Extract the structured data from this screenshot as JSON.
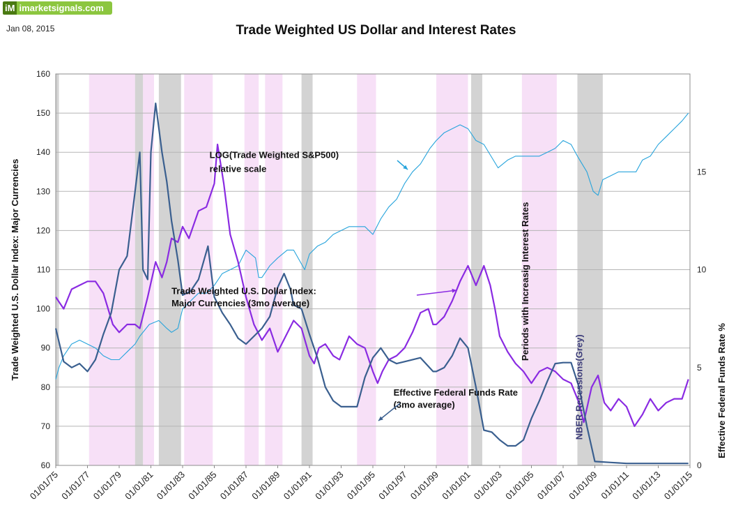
{
  "brand": {
    "logo": "iM",
    "name": "imarketsignals.com",
    "color": "#8cc63f"
  },
  "date": "Jan 08, 2015",
  "chart_data": {
    "type": "line",
    "title": "Trade Weighted US Dollar  and Interest Rates",
    "ylabel": "Trade Weighted U.S. Dollar Index:  Major Currencies",
    "ylabel_right": "Effective Federal Funds Rate %",
    "ylim": [
      60,
      160
    ],
    "ylim_right": [
      0,
      20
    ],
    "yticks": [
      60,
      70,
      80,
      90,
      100,
      110,
      120,
      130,
      140,
      150,
      160
    ],
    "yticks_right": [
      0,
      5,
      10,
      15
    ],
    "xlim": [
      1975.0,
      2015.0
    ],
    "xticks": [
      "01/01/75",
      "01/01/77",
      "01/01/79",
      "01/01/81",
      "01/01/83",
      "01/01/85",
      "01/01/87",
      "01/01/89",
      "01/01/91",
      "01/01/93",
      "01/01/95",
      "01/01/97",
      "01/01/99",
      "01/01/01",
      "01/01/03",
      "01/01/05",
      "01/01/07",
      "01/01/09",
      "01/01/11",
      "01/01/13",
      "01/01/15"
    ],
    "grid": true,
    "recession_color": "#d3d3d3",
    "rising_rate_color": "#f7e0f7",
    "recession_periods": [
      [
        1975.0,
        1975.2
      ],
      [
        1980.0,
        1980.5
      ],
      [
        1981.5,
        1982.9
      ],
      [
        1990.5,
        1991.2
      ],
      [
        2001.2,
        2001.9
      ],
      [
        2007.9,
        2009.5
      ]
    ],
    "rising_rate_periods": [
      [
        1977.1,
        1980.0
      ],
      [
        1980.5,
        1981.2
      ],
      [
        1983.1,
        1984.9
      ],
      [
        1986.9,
        1987.8
      ],
      [
        1988.2,
        1989.3
      ],
      [
        1994.0,
        1995.2
      ],
      [
        1999.0,
        2001.0
      ],
      [
        2004.4,
        2006.6
      ]
    ],
    "series": [
      {
        "name": "LOG(Trade Weighted S&P500) relative scale",
        "color": "#27a4dc",
        "axis": "left",
        "x": [
          1975.0,
          1975.2,
          1975.5,
          1976.0,
          1976.5,
          1977.0,
          1977.5,
          1978.0,
          1978.5,
          1979.0,
          1979.5,
          1980.0,
          1980.3,
          1980.9,
          1981.5,
          1982.0,
          1982.3,
          1982.7,
          1983.0,
          1983.5,
          1984.0,
          1984.5,
          1985.0,
          1985.5,
          1986.0,
          1986.5,
          1987.0,
          1987.6,
          1987.8,
          1988.0,
          1988.5,
          1989.0,
          1989.6,
          1990.0,
          1990.7,
          1991.0,
          1991.5,
          1992.0,
          1992.5,
          1993.0,
          1993.5,
          1994.0,
          1994.5,
          1995.0,
          1995.5,
          1996.0,
          1996.5,
          1997.0,
          1997.5,
          1998.0,
          1998.3,
          1998.6,
          1999.0,
          1999.5,
          2000.0,
          2000.5,
          2001.0,
          2001.5,
          2002.0,
          2002.6,
          2002.9,
          2003.5,
          2004.0,
          2004.5,
          2005.0,
          2005.5,
          2006.0,
          2006.5,
          2007.0,
          2007.5,
          2007.9,
          2008.5,
          2008.9,
          2009.2,
          2009.5,
          2010.0,
          2010.5,
          2011.0,
          2011.6,
          2012.0,
          2012.5,
          2013.0,
          2013.5,
          2014.0,
          2014.5,
          2014.9
        ],
        "y": [
          82,
          85,
          88,
          91,
          92,
          91,
          90,
          88,
          87,
          87,
          89,
          91,
          93,
          96,
          97,
          95,
          94,
          95,
          100,
          102,
          104,
          104,
          106,
          109,
          110,
          111,
          115,
          113,
          108,
          108,
          111,
          113,
          115,
          115,
          110,
          114,
          116,
          117,
          119,
          120,
          121,
          121,
          121,
          119,
          123,
          126,
          128,
          132,
          135,
          137,
          139,
          141,
          143,
          145,
          146,
          147,
          146,
          143,
          142,
          138,
          136,
          138,
          139,
          139,
          139,
          139,
          140,
          141,
          143,
          142,
          139,
          135,
          130,
          129,
          133,
          134,
          135,
          135,
          135,
          138,
          139,
          142,
          144,
          146,
          148,
          150
        ]
      },
      {
        "name": "Trade Weighted U.S. Dollar Index: Major Currencies (3mo average)",
        "color": "#8a2be2",
        "axis": "left",
        "x": [
          1975.0,
          1975.5,
          1976.0,
          1976.5,
          1977.0,
          1977.5,
          1978.0,
          1978.6,
          1979.0,
          1979.5,
          1980.0,
          1980.3,
          1980.8,
          1981.3,
          1981.7,
          1982.0,
          1982.3,
          1982.7,
          1983.0,
          1983.4,
          1984.0,
          1984.5,
          1985.0,
          1985.2,
          1985.6,
          1986.0,
          1986.5,
          1987.0,
          1987.5,
          1988.0,
          1988.5,
          1989.0,
          1989.5,
          1990.0,
          1990.5,
          1991.0,
          1991.3,
          1991.6,
          1992.0,
          1992.5,
          1992.9,
          1993.5,
          1994.0,
          1994.5,
          1995.0,
          1995.3,
          1995.6,
          1996.0,
          1996.5,
          1997.0,
          1997.5,
          1998.0,
          1998.5,
          1998.8,
          1999.0,
          1999.5,
          2000.0,
          2000.5,
          2001.0,
          2001.5,
          2002.0,
          2002.4,
          2002.7,
          2003.0,
          2003.5,
          2004.0,
          2004.5,
          2005.0,
          2005.5,
          2006.0,
          2006.5,
          2007.0,
          2007.5,
          2008.0,
          2008.3,
          2008.8,
          2009.2,
          2009.6,
          2010.0,
          2010.5,
          2011.0,
          2011.5,
          2012.0,
          2012.5,
          2013.0,
          2013.5,
          2014.0,
          2014.5,
          2014.9
        ],
        "y": [
          103,
          100,
          105,
          106,
          107,
          107,
          104,
          96,
          94,
          96,
          96,
          95,
          103,
          112,
          108,
          112,
          118,
          117,
          121,
          118,
          125,
          126,
          132,
          142,
          132,
          119,
          112,
          103,
          96,
          92,
          95,
          89,
          93,
          97,
          95,
          88,
          86,
          90,
          91,
          88,
          87,
          93,
          91,
          90,
          84,
          81,
          84,
          87,
          88,
          90,
          94,
          99,
          100,
          96,
          96,
          98,
          102,
          107,
          111,
          106,
          111,
          106,
          100,
          93,
          89,
          86,
          84,
          81,
          84,
          85,
          84,
          82,
          81,
          76,
          71,
          80,
          83,
          76,
          74,
          77,
          75,
          70,
          73,
          77,
          74,
          76,
          77,
          77,
          82
        ]
      },
      {
        "name": "Effective Federal Funds Rate (3mo average)",
        "color": "#3a5f8f",
        "axis": "right",
        "x": [
          1975.0,
          1975.5,
          1976.0,
          1976.5,
          1977.0,
          1977.5,
          1978.0,
          1978.5,
          1979.0,
          1979.5,
          1980.0,
          1980.3,
          1980.5,
          1980.8,
          1981.0,
          1981.3,
          1981.7,
          1982.0,
          1982.3,
          1982.7,
          1983.0,
          1983.5,
          1984.0,
          1984.6,
          1985.0,
          1985.5,
          1986.0,
          1986.5,
          1987.0,
          1987.5,
          1988.0,
          1988.5,
          1989.0,
          1989.4,
          1989.8,
          1990.0,
          1990.5,
          1991.0,
          1991.5,
          1992.0,
          1992.5,
          1993.0,
          1994.0,
          1994.5,
          1995.0,
          1995.5,
          1996.0,
          1996.5,
          1997.0,
          1998.0,
          1998.8,
          1999.0,
          1999.5,
          2000.0,
          2000.5,
          2001.0,
          2001.5,
          2002.0,
          2002.5,
          2003.0,
          2003.5,
          2004.0,
          2004.5,
          2005.0,
          2005.5,
          2006.0,
          2006.5,
          2007.0,
          2007.5,
          2008.0,
          2008.5,
          2009.0,
          2010.0,
          2011.0,
          2012.0,
          2013.0,
          2014.0,
          2014.9
        ],
        "y": [
          7.0,
          5.3,
          5.0,
          5.2,
          4.8,
          5.4,
          6.7,
          7.8,
          10.0,
          10.7,
          14.0,
          16.0,
          10.0,
          9.5,
          16.0,
          18.5,
          16.0,
          14.5,
          12.5,
          10.5,
          8.7,
          8.9,
          9.5,
          11.2,
          8.6,
          7.8,
          7.2,
          6.5,
          6.2,
          6.6,
          7.0,
          7.6,
          9.1,
          9.8,
          9.0,
          8.2,
          8.0,
          6.7,
          5.5,
          4.0,
          3.3,
          3.0,
          3.0,
          4.5,
          5.5,
          6.0,
          5.4,
          5.2,
          5.3,
          5.5,
          4.8,
          4.8,
          5.0,
          5.6,
          6.5,
          6.0,
          4.0,
          1.8,
          1.7,
          1.3,
          1.0,
          1.0,
          1.3,
          2.4,
          3.3,
          4.3,
          5.2,
          5.25,
          5.25,
          4.0,
          2.0,
          0.2,
          0.15,
          0.1,
          0.1,
          0.1,
          0.1,
          0.1
        ]
      }
    ],
    "annotations": [
      {
        "text": "LOG(Trade Weighted S&P500)",
        "x": 1984.7,
        "y": 138.5
      },
      {
        "text": "relative scale",
        "x": 1984.7,
        "y": 135.0
      },
      {
        "text": "Trade Weighted U.S. Dollar Index:",
        "x": 1982.3,
        "y": 103.8
      },
      {
        "text": "Major Currencies (3mo average)",
        "x": 1982.3,
        "y": 100.6
      },
      {
        "text": "Effective Federal Funds Rate",
        "x": 1996.3,
        "y": 77.8
      },
      {
        "text": "(3mo average)",
        "x": 1996.3,
        "y": 74.7
      },
      {
        "text": "Periods with Increasig Interest Rates",
        "x": 2004.8,
        "y": 107,
        "rotate": -90,
        "color": "#111111"
      },
      {
        "text": "NBER Recessions(Grey)",
        "x": 2008.2,
        "y": 80,
        "rotate": -90,
        "color": "#3c3c7a"
      }
    ]
  }
}
